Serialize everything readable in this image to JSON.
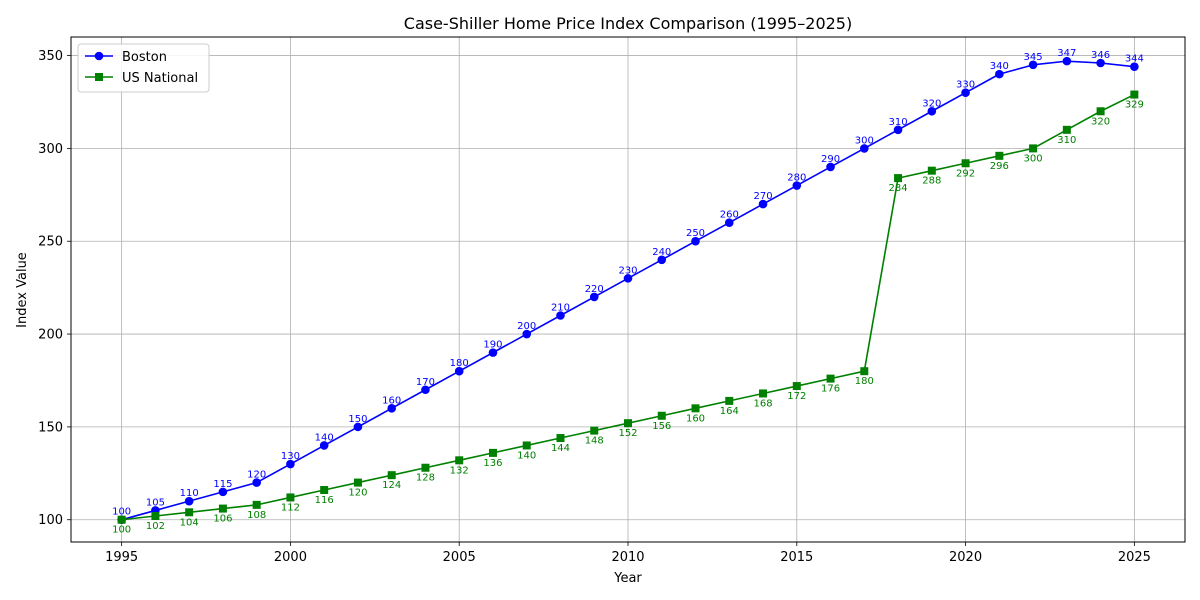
{
  "chart_data": {
    "type": "line",
    "title": "Case-Shiller Home Price Index Comparison (1995–2025)",
    "xlabel": "Year",
    "ylabel": "Index Value",
    "x": [
      1995,
      1996,
      1997,
      1998,
      1999,
      2000,
      2001,
      2002,
      2003,
      2004,
      2005,
      2006,
      2007,
      2008,
      2009,
      2010,
      2011,
      2012,
      2013,
      2014,
      2015,
      2016,
      2017,
      2018,
      2019,
      2020,
      2021,
      2022,
      2023,
      2024,
      2025
    ],
    "xlim": [
      1993.5,
      2026.5
    ],
    "ylim": [
      88,
      360
    ],
    "x_ticks": [
      1995,
      2000,
      2005,
      2010,
      2015,
      2020,
      2025
    ],
    "y_ticks": [
      100,
      150,
      200,
      250,
      300,
      350
    ],
    "grid": true,
    "legend_position": "upper-left",
    "series": [
      {
        "name": "Boston",
        "color": "#0000ff",
        "marker": "circle",
        "label_position": "above",
        "values": [
          100,
          105,
          110,
          115,
          120,
          130,
          140,
          150,
          160,
          170,
          180,
          190,
          200,
          210,
          220,
          230,
          240,
          250,
          260,
          270,
          280,
          290,
          300,
          310,
          320,
          330,
          340,
          345,
          347,
          346,
          344
        ]
      },
      {
        "name": "US National",
        "color": "#008000",
        "marker": "square",
        "label_position": "below",
        "values": [
          100,
          102,
          104,
          106,
          108,
          112,
          116,
          120,
          124,
          128,
          132,
          136,
          140,
          144,
          148,
          152,
          156,
          160,
          164,
          168,
          172,
          176,
          180,
          284,
          288,
          292,
          296,
          300,
          310,
          320,
          329
        ]
      }
    ]
  }
}
